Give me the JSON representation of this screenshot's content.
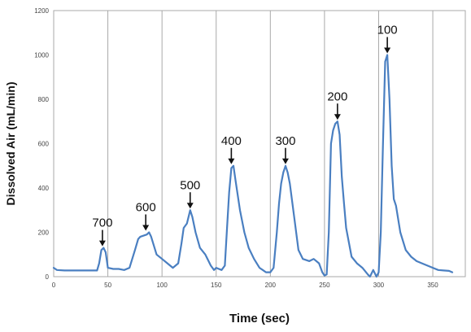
{
  "chart_data": {
    "type": "line",
    "title": "",
    "xlabel": "Time (sec)",
    "ylabel": "Dissolved Air (mL/min)",
    "xlim": [
      0,
      380
    ],
    "ylim": [
      0,
      1200
    ],
    "x_ticks": [
      "0",
      "50",
      "100",
      "150",
      "200",
      "250",
      "300",
      "350"
    ],
    "y_ticks": [
      "0",
      "200",
      "400",
      "600",
      "800",
      "1000",
      "1200"
    ],
    "grid": "vertical",
    "legend": "none",
    "line_color": "#4a7fc1",
    "series": [
      {
        "x": [
          0,
          3,
          10,
          20,
          30,
          40,
          42,
          44,
          46,
          48,
          50,
          55,
          60,
          65,
          70,
          75,
          78,
          80,
          83,
          86,
          88,
          90,
          95,
          100,
          105,
          110,
          115,
          118,
          120,
          123,
          126,
          128,
          131,
          135,
          140,
          145,
          148,
          150,
          155,
          158,
          160,
          162,
          164,
          166,
          168,
          172,
          176,
          180,
          185,
          190,
          193,
          196,
          200,
          203,
          206,
          208,
          210,
          212,
          214,
          216,
          218,
          222,
          226,
          230,
          236,
          240,
          245,
          248,
          250,
          252,
          254,
          256,
          258,
          260,
          262,
          264,
          266,
          268,
          270,
          275,
          280,
          285,
          290,
          292,
          295,
          298,
          300,
          302,
          304,
          306,
          308,
          310,
          312,
          314,
          316,
          320,
          325,
          330,
          335,
          340,
          345,
          350,
          355,
          360,
          365,
          368
        ],
        "y": [
          40,
          30,
          28,
          28,
          28,
          28,
          60,
          120,
          130,
          110,
          40,
          35,
          35,
          30,
          40,
          120,
          170,
          180,
          185,
          190,
          200,
          180,
          100,
          80,
          60,
          40,
          60,
          150,
          220,
          240,
          300,
          270,
          200,
          130,
          100,
          50,
          30,
          40,
          30,
          50,
          220,
          380,
          490,
          500,
          430,
          300,
          200,
          130,
          80,
          40,
          30,
          20,
          20,
          40,
          200,
          330,
          420,
          470,
          500,
          470,
          420,
          270,
          120,
          80,
          70,
          80,
          60,
          20,
          5,
          10,
          200,
          600,
          660,
          690,
          700,
          640,
          450,
          330,
          220,
          90,
          60,
          40,
          10,
          0,
          30,
          0,
          20,
          200,
          600,
          970,
          1000,
          800,
          500,
          350,
          320,
          200,
          120,
          90,
          70,
          60,
          50,
          40,
          30,
          28,
          26,
          20
        ]
      }
    ],
    "annotations": [
      {
        "text": "700",
        "x": 45,
        "y": 130
      },
      {
        "text": "600",
        "x": 85,
        "y": 200
      },
      {
        "text": "500",
        "x": 126,
        "y": 300
      },
      {
        "text": "400",
        "x": 164,
        "y": 500
      },
      {
        "text": "300",
        "x": 214,
        "y": 500
      },
      {
        "text": "200",
        "x": 262,
        "y": 700
      },
      {
        "text": "100",
        "x": 308,
        "y": 1000
      }
    ]
  }
}
